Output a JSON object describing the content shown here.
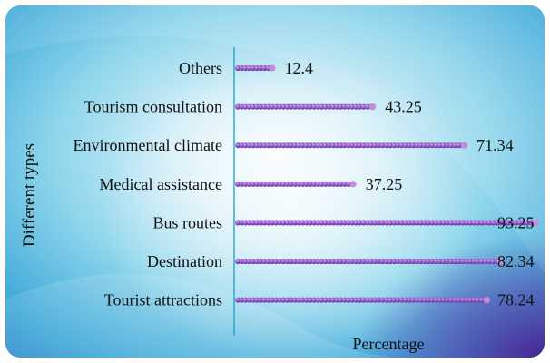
{
  "chart_data": {
    "type": "bar",
    "orientation": "horizontal",
    "title": "",
    "xlabel": "Percentage",
    "ylabel": "Different types",
    "xlim": [
      0,
      100
    ],
    "categories": [
      "Others",
      "Tourism consultation",
      "Environmental climate",
      "Medical assistance",
      "Bus routes",
      "Destination",
      "Tourist attractions"
    ],
    "values": [
      12.4,
      43.25,
      71.34,
      37.25,
      93.25,
      82.34,
      78.24
    ],
    "value_labels": [
      "12.4",
      "43.25",
      "71.34",
      "37.25",
      "93.25",
      "82.34",
      "78.24"
    ],
    "grid": false,
    "legend": "none",
    "colors": {
      "bar_dot": "#7b49b8",
      "bar_dot_highlight": "#c58bd9",
      "background_inner": "#eef8fc",
      "background_mid": "#7fd1ea",
      "background_outer": "#1a78c4",
      "corner_purple": "#5a2c9a",
      "axis_line": "#1a9ec4",
      "text": "#111111"
    }
  }
}
